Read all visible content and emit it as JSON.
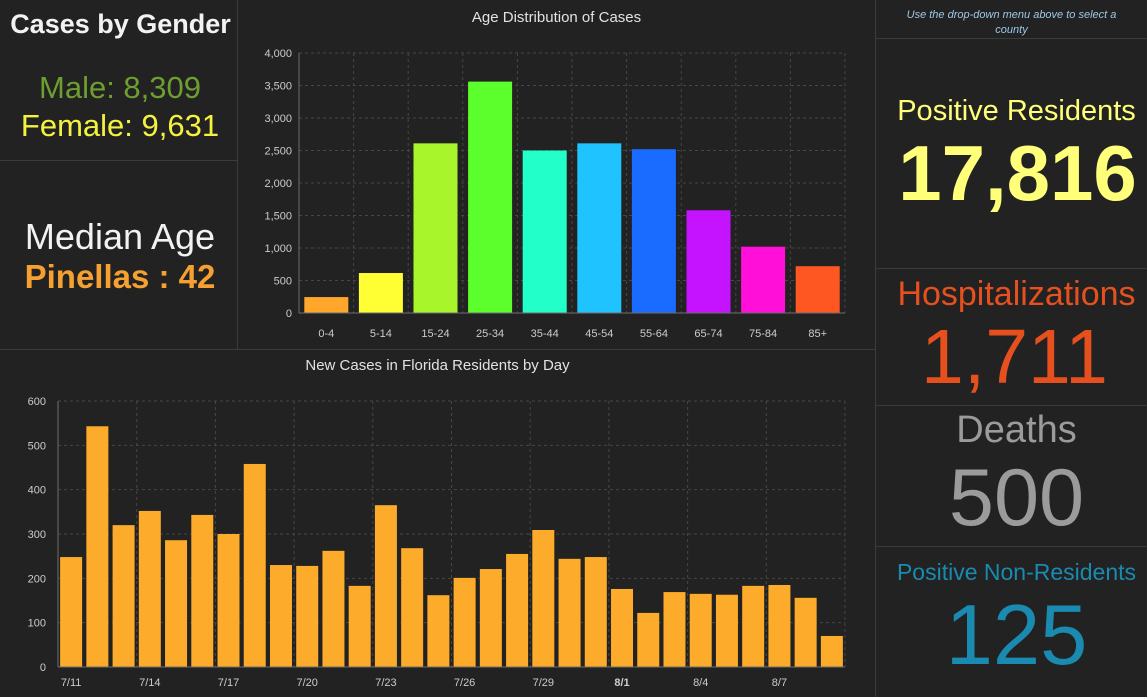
{
  "gender": {
    "title": "Cases by Gender",
    "male": "Male: 8,309",
    "female": "Female: 9,631"
  },
  "median_age": {
    "title": "Median Age",
    "value": "Pinellas : 42"
  },
  "notice": "Use the drop-down menu above to select a county",
  "indicators": {
    "positive_residents": {
      "label": "Positive Residents",
      "value": "17,816"
    },
    "hospitalizations": {
      "label": "Hospitalizations",
      "value": "1,711"
    },
    "deaths": {
      "label": "Deaths",
      "value": "500"
    },
    "positive_non_residents": {
      "label": "Positive Non-Residents",
      "value": "125"
    }
  },
  "colors": {
    "male": "#6e9e2f",
    "female": "#f4f23f",
    "median_value": "#f5a030",
    "notice": "#9fc8e5",
    "positive_residents": "#ffff7a",
    "hospitalizations": "#e6501e",
    "deaths": "#9b9b9b",
    "positive_non_residents": "#1a8ab0"
  },
  "chart_data": [
    {
      "type": "bar",
      "title": "Age Distribution of Cases",
      "categories": [
        "0-4",
        "5-14",
        "15-24",
        "25-34",
        "35-44",
        "45-54",
        "55-64",
        "65-74",
        "75-84",
        "85+"
      ],
      "values": [
        245,
        615,
        2610,
        3560,
        2500,
        2610,
        2520,
        1580,
        1020,
        720
      ],
      "colors": [
        "#ffa62b",
        "#ffff33",
        "#a8f52c",
        "#5cff2b",
        "#22ffc8",
        "#1ec3ff",
        "#1a6bff",
        "#c513ff",
        "#ff0fd8",
        "#ff5722"
      ],
      "ylim": [
        0,
        4000
      ],
      "yticks": [
        "0",
        "500",
        "1,000",
        "1,500",
        "2,000",
        "2,500",
        "3,000",
        "3,500",
        "4,000"
      ],
      "grid": true
    },
    {
      "type": "bar",
      "title": "New Cases in Florida Residents by Day",
      "x_tick_labels": [
        "7/11",
        "7/14",
        "7/17",
        "7/20",
        "7/23",
        "7/26",
        "7/29",
        "8/1",
        "8/4",
        "8/7"
      ],
      "values": [
        248,
        543,
        320,
        352,
        286,
        343,
        300,
        458,
        230,
        228,
        262,
        183,
        365,
        268,
        162,
        201,
        221,
        255,
        309,
        244,
        248,
        176,
        122,
        169,
        165,
        163,
        183,
        185,
        156,
        70
      ],
      "color": "#fdab2a",
      "ylim": [
        0,
        600
      ],
      "yticks": [
        "0",
        "100",
        "200",
        "300",
        "400",
        "500",
        "600"
      ],
      "grid": true
    }
  ]
}
